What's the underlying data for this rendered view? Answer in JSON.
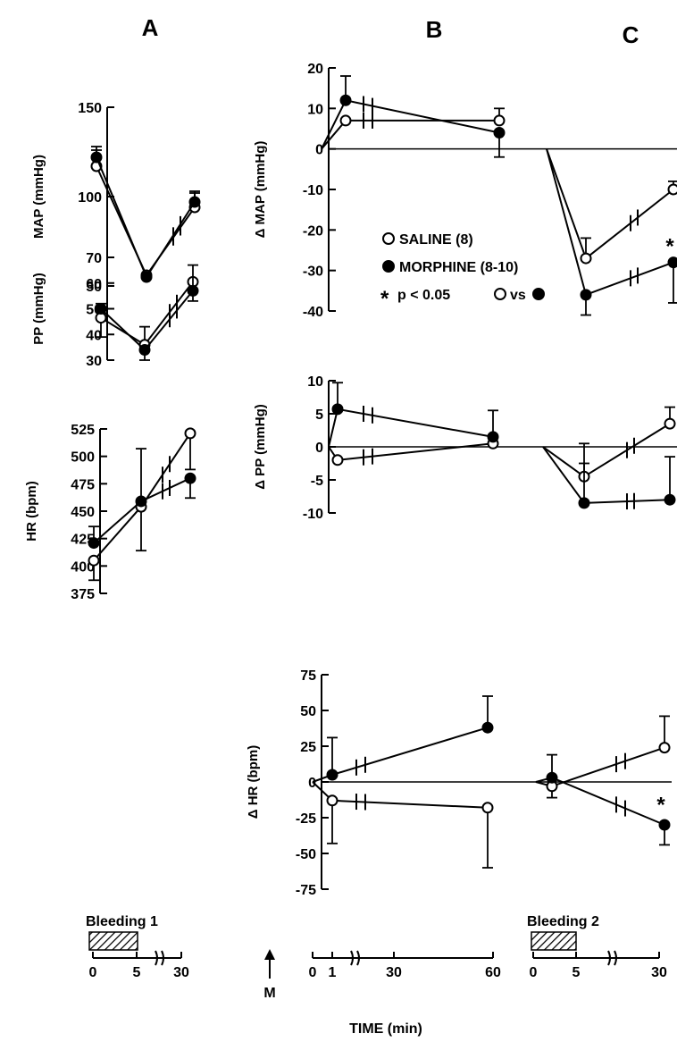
{
  "panel_labels": [
    "A",
    "B",
    "C"
  ],
  "legend": {
    "saline": "SALINE (8)",
    "morphine": "MORPHINE (8-10)",
    "significance": "p < 0.05",
    "vs": "vs"
  },
  "colors": {
    "ink": "#000000",
    "open_marker_fill": "#ffffff",
    "filled_marker_fill": "#000000",
    "hatch": "#000000"
  },
  "timeline": {
    "x_title": "TIME (min)",
    "bleeding1_label": "Bleeding 1",
    "bleeding2_label": "Bleeding 2",
    "morphine_arrow_label": "M",
    "axisA_ticks": [
      "0",
      "5",
      "30"
    ],
    "axisB_ticks": [
      "0",
      "1",
      "30",
      "60"
    ],
    "axisC_ticks": [
      "0",
      "5",
      "30"
    ]
  },
  "chart_data": [
    {
      "id": "A-MAP",
      "type": "line",
      "panel": "A",
      "ylabel": "MAP (mmHg)",
      "ylim": [
        50,
        150
      ],
      "y_ticks": [
        "150",
        "100",
        "50"
      ],
      "y_tick_values": [
        150,
        100,
        50
      ],
      "x": [
        0,
        5,
        30
      ],
      "series": [
        {
          "name": "SALINE (8)",
          "marker": "open",
          "values": [
            117,
            56,
            94
          ],
          "err_up": [
            9,
            0,
            8
          ],
          "err_down": [
            0,
            0,
            0
          ]
        },
        {
          "name": "MORPHINE (8-10)",
          "marker": "filled",
          "values": [
            122,
            55,
            97
          ],
          "err_up": [
            6,
            0,
            6
          ],
          "err_down": [
            0,
            0,
            0
          ]
        }
      ]
    },
    {
      "id": "A-PP",
      "type": "line",
      "panel": "A",
      "ylabel": "PP (mmHg)",
      "ylim": [
        30,
        70
      ],
      "y_ticks": [
        "70",
        "60",
        "50",
        "40",
        "30"
      ],
      "y_tick_values": [
        70,
        60,
        50,
        40,
        30
      ],
      "x": [
        0,
        5,
        30
      ],
      "series": [
        {
          "name": "SALINE (8)",
          "marker": "open",
          "values": [
            46.5,
            36,
            60.5
          ],
          "err_up": [
            0,
            7,
            0
          ],
          "err_down": [
            7.5,
            0,
            0
          ]
        },
        {
          "name": "MORPHINE (8-10)",
          "marker": "filled",
          "values": [
            50,
            34,
            57
          ],
          "err_up": [
            2,
            0,
            10
          ],
          "err_down": [
            0,
            4,
            4
          ]
        }
      ]
    },
    {
      "id": "A-HR",
      "type": "line",
      "panel": "A",
      "ylabel": "HR (bpm)",
      "ylim": [
        375,
        525
      ],
      "y_ticks": [
        "525",
        "500",
        "475",
        "450",
        "425",
        "400",
        "375"
      ],
      "y_tick_values": [
        525,
        500,
        475,
        450,
        425,
        400,
        375
      ],
      "x": [
        0,
        5,
        30
      ],
      "series": [
        {
          "name": "SALINE (8)",
          "marker": "open",
          "values": [
            405,
            454,
            521
          ],
          "err_up": [
            0,
            0,
            0
          ],
          "err_down": [
            18,
            40,
            33
          ]
        },
        {
          "name": "MORPHINE (8-10)",
          "marker": "filled",
          "values": [
            421,
            459,
            480
          ],
          "err_up": [
            15,
            48,
            0
          ],
          "err_down": [
            0,
            0,
            18
          ]
        }
      ]
    },
    {
      "id": "B-dMAP",
      "type": "line",
      "panel": "B",
      "ylabel": "Δ MAP (mmHg)",
      "ylim": [
        -40,
        20
      ],
      "y_ticks": [
        "20",
        "10",
        "0",
        "-10",
        "-20",
        "-30",
        "-40"
      ],
      "y_tick_values": [
        20,
        10,
        0,
        -10,
        -20,
        -30,
        -40
      ],
      "x": [
        0,
        1,
        60
      ],
      "series": [
        {
          "name": "SALINE (8)",
          "marker": "open",
          "values": [
            0,
            7,
            7
          ],
          "err_up": [
            0,
            0,
            3
          ],
          "err_down": [
            0,
            0,
            0
          ]
        },
        {
          "name": "MORPHINE (8-10)",
          "marker": "filled",
          "values": [
            0,
            12,
            4
          ],
          "err_up": [
            0,
            6,
            0
          ],
          "err_down": [
            0,
            0,
            6
          ]
        }
      ]
    },
    {
      "id": "C-dMAP",
      "type": "line",
      "panel": "C",
      "ylabel": "",
      "ylim": [
        -40,
        20
      ],
      "x": [
        0,
        5,
        30
      ],
      "series": [
        {
          "name": "SALINE (8)",
          "marker": "open",
          "values": [
            0,
            -27,
            -10
          ],
          "err_up": [
            0,
            5,
            2
          ],
          "err_down": [
            0,
            0,
            0
          ]
        },
        {
          "name": "MORPHINE (8-10)",
          "marker": "filled",
          "values": [
            0,
            -36,
            -28
          ],
          "err_up": [
            0,
            0,
            0
          ],
          "err_down": [
            0,
            5,
            10
          ]
        }
      ],
      "annotations": [
        {
          "text": "*",
          "x": 30,
          "y": -24
        }
      ]
    },
    {
      "id": "B-dPP",
      "type": "line",
      "panel": "B",
      "ylabel": "Δ PP (mmHg)",
      "ylim": [
        -10,
        10
      ],
      "y_ticks": [
        "10",
        "5",
        "0",
        "-5",
        "-10"
      ],
      "y_tick_values": [
        10,
        5,
        0,
        -5,
        -10
      ],
      "x": [
        0,
        1,
        60
      ],
      "series": [
        {
          "name": "SALINE (8)",
          "marker": "open",
          "values": [
            0,
            -2,
            0.5
          ],
          "err_up": [
            0,
            0,
            0
          ],
          "err_down": [
            0,
            0,
            0
          ]
        },
        {
          "name": "MORPHINE (8-10)",
          "marker": "filled",
          "values": [
            0,
            5.7,
            1.5
          ],
          "err_up": [
            0,
            4,
            4
          ],
          "err_down": [
            0,
            0,
            0
          ]
        }
      ]
    },
    {
      "id": "C-dPP",
      "type": "line",
      "panel": "C",
      "ylabel": "",
      "ylim": [
        -10,
        10
      ],
      "x": [
        0,
        5,
        30
      ],
      "series": [
        {
          "name": "SALINE (8)",
          "marker": "open",
          "values": [
            0,
            -4.5,
            3.5
          ],
          "err_up": [
            0,
            5,
            2.5
          ],
          "err_down": [
            0,
            0,
            0
          ]
        },
        {
          "name": "MORPHINE (8-10)",
          "marker": "filled",
          "values": [
            0,
            -8.5,
            -8
          ],
          "err_up": [
            0,
            6,
            6.5
          ],
          "err_down": [
            0,
            0,
            0
          ]
        }
      ]
    },
    {
      "id": "B-dHR",
      "type": "line",
      "panel": "B",
      "ylabel": "Δ HR (bpm)",
      "ylim": [
        -75,
        75
      ],
      "y_ticks": [
        "75",
        "50",
        "25",
        "0",
        "-25",
        "-50",
        "-75"
      ],
      "y_tick_values": [
        75,
        50,
        25,
        0,
        -25,
        -50,
        -75
      ],
      "x": [
        0,
        1,
        60
      ],
      "series": [
        {
          "name": "SALINE (8)",
          "marker": "open",
          "values": [
            0,
            -13,
            -18
          ],
          "err_up": [
            0,
            0,
            0
          ],
          "err_down": [
            0,
            30,
            42
          ]
        },
        {
          "name": "MORPHINE (8-10)",
          "marker": "filled",
          "values": [
            0,
            5,
            38
          ],
          "err_up": [
            0,
            26,
            22
          ],
          "err_down": [
            0,
            0,
            0
          ]
        }
      ]
    },
    {
      "id": "C-dHR",
      "type": "line",
      "panel": "C",
      "ylabel": "",
      "ylim": [
        -75,
        75
      ],
      "x": [
        0,
        5,
        30
      ],
      "series": [
        {
          "name": "SALINE (8)",
          "marker": "open",
          "values": [
            0,
            -3,
            24
          ],
          "err_up": [
            0,
            0,
            22
          ],
          "err_down": [
            0,
            8,
            0
          ]
        },
        {
          "name": "MORPHINE (8-10)",
          "marker": "filled",
          "values": [
            0,
            3,
            -30
          ],
          "err_up": [
            0,
            16,
            0
          ],
          "err_down": [
            0,
            0,
            14
          ]
        }
      ],
      "annotations": [
        {
          "text": "*",
          "x": 30,
          "y": -16
        }
      ]
    }
  ]
}
